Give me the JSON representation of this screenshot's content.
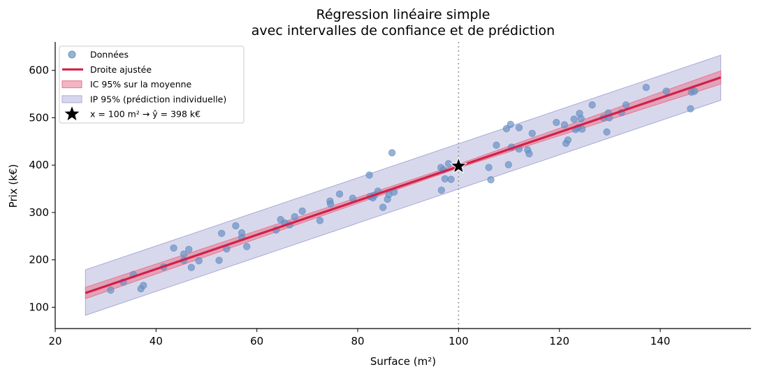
{
  "chart_data": {
    "type": "scatter",
    "title": "Régression linéaire simple",
    "subtitle": "avec intervalles de confiance et de prédiction",
    "xlabel": "Surface (m²)",
    "ylabel": "Prix (k€)",
    "xlim": [
      20,
      158
    ],
    "ylim": [
      55,
      660
    ],
    "xticks": [
      20,
      40,
      60,
      80,
      100,
      120,
      140
    ],
    "yticks": [
      100,
      200,
      300,
      400,
      500,
      600
    ],
    "grid": false,
    "legend_position": "top-left",
    "colors": {
      "points": "#6a93c4",
      "fit_line": "#d1204a",
      "ci_band": "#e8788e",
      "pi_band": "#a9a9d6",
      "marker": "#000000",
      "vline": "#999999"
    },
    "legend": [
      {
        "label": "Données",
        "kind": "point"
      },
      {
        "label": "Droite ajustée",
        "kind": "line"
      },
      {
        "label": "IC 95% sur la moyenne",
        "kind": "ci"
      },
      {
        "label": "IP 95% (prédiction individuelle)",
        "kind": "pi"
      },
      {
        "label": "x = 100 m² → ŷ = 398 k€",
        "kind": "star"
      }
    ],
    "fit": {
      "x": [
        26,
        152
      ],
      "y": [
        130,
        585
      ]
    },
    "ci_band": {
      "x": [
        26,
        100,
        152
      ],
      "lower": [
        118,
        394,
        571
      ],
      "upper": [
        142,
        402,
        599
      ]
    },
    "pi_band": {
      "x": [
        26,
        152
      ],
      "lower": [
        83,
        537
      ],
      "upper": [
        179,
        632
      ]
    },
    "prediction_marker": {
      "x": 100,
      "y": 398
    },
    "vline_x": 100,
    "series": [
      {
        "name": "Données",
        "points": [
          [
            31,
            136
          ],
          [
            33.5,
            153
          ],
          [
            35.5,
            169
          ],
          [
            37,
            139
          ],
          [
            37.5,
            146
          ],
          [
            41.5,
            185
          ],
          [
            43.5,
            225
          ],
          [
            45.5,
            199
          ],
          [
            45.5,
            212
          ],
          [
            46.5,
            222
          ],
          [
            47,
            184
          ],
          [
            48.5,
            198
          ],
          [
            52.5,
            199
          ],
          [
            53,
            256
          ],
          [
            54,
            223
          ],
          [
            55.8,
            272
          ],
          [
            57,
            257
          ],
          [
            57,
            247
          ],
          [
            58,
            228
          ],
          [
            63.8,
            263
          ],
          [
            64.7,
            285
          ],
          [
            65.5,
            278
          ],
          [
            66.5,
            274
          ],
          [
            67.5,
            291
          ],
          [
            69,
            303
          ],
          [
            72.5,
            283
          ],
          [
            74.5,
            324
          ],
          [
            74.6,
            318
          ],
          [
            76.4,
            339
          ],
          [
            79,
            330
          ],
          [
            82.3,
            379
          ],
          [
            82.5,
            334
          ],
          [
            83,
            331
          ],
          [
            83.3,
            336
          ],
          [
            84,
            345
          ],
          [
            85,
            311
          ],
          [
            85.9,
            328
          ],
          [
            86.2,
            338
          ],
          [
            86.8,
            426
          ],
          [
            87.2,
            343
          ],
          [
            96.5,
            395
          ],
          [
            96.6,
            347
          ],
          [
            97,
            390
          ],
          [
            97.3,
            371
          ],
          [
            98,
            403
          ],
          [
            98.5,
            370
          ],
          [
            106,
            395
          ],
          [
            106.4,
            369
          ],
          [
            107.5,
            442
          ],
          [
            109.5,
            477
          ],
          [
            109.9,
            401
          ],
          [
            110.3,
            486
          ],
          [
            110.5,
            438
          ],
          [
            112,
            479
          ],
          [
            112,
            434
          ],
          [
            113.7,
            432
          ],
          [
            114,
            424
          ],
          [
            114.6,
            467
          ],
          [
            119.4,
            490
          ],
          [
            121,
            485
          ],
          [
            121.3,
            446
          ],
          [
            121.7,
            453
          ],
          [
            122.9,
            497
          ],
          [
            123.2,
            475
          ],
          [
            123.7,
            479
          ],
          [
            124,
            509
          ],
          [
            124.3,
            498
          ],
          [
            124.5,
            476
          ],
          [
            126.5,
            527
          ],
          [
            128.7,
            500
          ],
          [
            129.4,
            470
          ],
          [
            129.7,
            510
          ],
          [
            129.9,
            500
          ],
          [
            132.3,
            511
          ],
          [
            133.2,
            527
          ],
          [
            137.2,
            564
          ],
          [
            141.2,
            556
          ],
          [
            146,
            519
          ],
          [
            146.2,
            554
          ],
          [
            146.8,
            556
          ]
        ]
      }
    ]
  }
}
